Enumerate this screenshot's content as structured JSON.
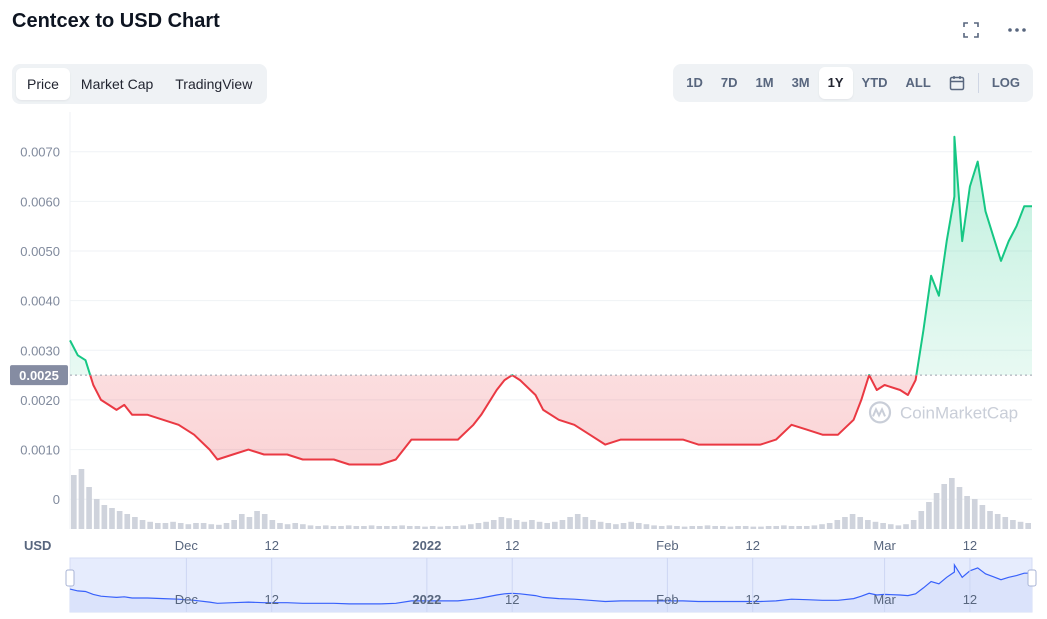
{
  "page": {
    "title": "Centcex to USD Chart"
  },
  "tabs": [
    {
      "label": "Price",
      "active": true
    },
    {
      "label": "Market Cap",
      "active": false
    },
    {
      "label": "TradingView",
      "active": false
    }
  ],
  "ranges": [
    {
      "label": "1D",
      "active": false
    },
    {
      "label": "7D",
      "active": false
    },
    {
      "label": "1M",
      "active": false
    },
    {
      "label": "3M",
      "active": false
    },
    {
      "label": "1Y",
      "active": true
    },
    {
      "label": "YTD",
      "active": false
    },
    {
      "label": "ALL",
      "active": false
    }
  ],
  "log_label": "LOG",
  "icons": {
    "fullscreen": "expand-icon",
    "more": "more-dots-icon",
    "calendar": "calendar-icon"
  },
  "colors": {
    "up": "#16c784",
    "down": "#ea3943",
    "accent": "#3861fb",
    "navigator_fill": "#e6ecfd",
    "baseline_tag": "#858ca2"
  },
  "chart_data": {
    "type": "area",
    "currency_label": "USD",
    "watermark": "CoinMarketCap",
    "baseline": 0.0025,
    "baseline_label": "0.0025",
    "ylim": [
      -0.0006,
      0.0078
    ],
    "yticks": [
      {
        "value": 0.007,
        "label": "0.0070"
      },
      {
        "value": 0.006,
        "label": "0.0060"
      },
      {
        "value": 0.005,
        "label": "0.0050"
      },
      {
        "value": 0.004,
        "label": "0.0040"
      },
      {
        "value": 0.003,
        "label": "0.0030"
      },
      {
        "value": 0.002,
        "label": "0.0020"
      },
      {
        "value": 0.001,
        "label": "0.0010"
      },
      {
        "value": 0,
        "label": "0"
      }
    ],
    "x_domain": [
      "2021-11-16",
      "2022-03-20"
    ],
    "xticks": [
      {
        "date": "2021-12-01",
        "label": "Dec",
        "bold": false
      },
      {
        "date": "2021-12-12",
        "label": "12",
        "bold": false
      },
      {
        "date": "2022-01-01",
        "label": "2022",
        "bold": true
      },
      {
        "date": "2022-01-12",
        "label": "12",
        "bold": false
      },
      {
        "date": "2022-02-01",
        "label": "Feb",
        "bold": false
      },
      {
        "date": "2022-02-12",
        "label": "12",
        "bold": false
      },
      {
        "date": "2022-03-01",
        "label": "Mar",
        "bold": false
      },
      {
        "date": "2022-03-12",
        "label": "12",
        "bold": false
      }
    ],
    "series": [
      {
        "values": [
          [
            "2021-11-16",
            0.0032
          ],
          [
            "2021-11-17",
            0.0029
          ],
          [
            "2021-11-18",
            0.0028
          ],
          [
            "2021-11-19",
            0.0023
          ],
          [
            "2021-11-20",
            0.002
          ],
          [
            "2021-11-21",
            0.0019
          ],
          [
            "2021-11-22",
            0.0018
          ],
          [
            "2021-11-23",
            0.0019
          ],
          [
            "2021-11-24",
            0.0017
          ],
          [
            "2021-11-26",
            0.0017
          ],
          [
            "2021-11-28",
            0.0016
          ],
          [
            "2021-11-30",
            0.0015
          ],
          [
            "2021-12-02",
            0.0013
          ],
          [
            "2021-12-04",
            0.001
          ],
          [
            "2021-12-05",
            0.0008
          ],
          [
            "2021-12-07",
            0.0009
          ],
          [
            "2021-12-09",
            0.001
          ],
          [
            "2021-12-11",
            0.0009
          ],
          [
            "2021-12-14",
            0.0009
          ],
          [
            "2021-12-16",
            0.0008
          ],
          [
            "2021-12-18",
            0.0008
          ],
          [
            "2021-12-20",
            0.0008
          ],
          [
            "2021-12-22",
            0.0007
          ],
          [
            "2021-12-24",
            0.0007
          ],
          [
            "2021-12-26",
            0.0007
          ],
          [
            "2021-12-28",
            0.0008
          ],
          [
            "2021-12-30",
            0.0012
          ],
          [
            "2022-01-01",
            0.0012
          ],
          [
            "2022-01-03",
            0.0012
          ],
          [
            "2022-01-05",
            0.0012
          ],
          [
            "2022-01-07",
            0.0015
          ],
          [
            "2022-01-08",
            0.0017
          ],
          [
            "2022-01-10",
            0.0022
          ],
          [
            "2022-01-11",
            0.0024
          ],
          [
            "2022-01-12",
            0.0025
          ],
          [
            "2022-01-13",
            0.0024
          ],
          [
            "2022-01-15",
            0.0021
          ],
          [
            "2022-01-16",
            0.0018
          ],
          [
            "2022-01-18",
            0.0016
          ],
          [
            "2022-01-20",
            0.0015
          ],
          [
            "2022-01-22",
            0.0013
          ],
          [
            "2022-01-24",
            0.0011
          ],
          [
            "2022-01-26",
            0.0012
          ],
          [
            "2022-01-28",
            0.0012
          ],
          [
            "2022-01-30",
            0.0012
          ],
          [
            "2022-02-01",
            0.0012
          ],
          [
            "2022-02-03",
            0.0012
          ],
          [
            "2022-02-05",
            0.0011
          ],
          [
            "2022-02-07",
            0.0011
          ],
          [
            "2022-02-09",
            0.0011
          ],
          [
            "2022-02-11",
            0.0011
          ],
          [
            "2022-02-13",
            0.0011
          ],
          [
            "2022-02-15",
            0.0012
          ],
          [
            "2022-02-17",
            0.0015
          ],
          [
            "2022-02-19",
            0.0014
          ],
          [
            "2022-02-21",
            0.0013
          ],
          [
            "2022-02-23",
            0.0013
          ],
          [
            "2022-02-25",
            0.0016
          ],
          [
            "2022-02-26",
            0.002
          ],
          [
            "2022-02-27",
            0.0025
          ],
          [
            "2022-02-28",
            0.0022
          ],
          [
            "2022-03-01",
            0.0023
          ],
          [
            "2022-03-03",
            0.0022
          ],
          [
            "2022-03-04",
            0.0021
          ],
          [
            "2022-03-05",
            0.0024
          ],
          [
            "2022-03-06",
            0.0034
          ],
          [
            "2022-03-07",
            0.0045
          ],
          [
            "2022-03-08",
            0.0041
          ],
          [
            "2022-03-09",
            0.0052
          ],
          [
            "2022-03-10",
            0.0061
          ],
          [
            "2022-03-10",
            0.0073
          ],
          [
            "2022-03-11",
            0.0052
          ],
          [
            "2022-03-12",
            0.0063
          ],
          [
            "2022-03-13",
            0.0068
          ],
          [
            "2022-03-14",
            0.0058
          ],
          [
            "2022-03-15",
            0.0053
          ],
          [
            "2022-03-16",
            0.0048
          ],
          [
            "2022-03-17",
            0.0052
          ],
          [
            "2022-03-18",
            0.0055
          ],
          [
            "2022-03-19",
            0.0059
          ],
          [
            "2022-03-20",
            0.0059
          ]
        ]
      }
    ],
    "volume": [
      0.9,
      1.0,
      0.7,
      0.5,
      0.4,
      0.35,
      0.3,
      0.25,
      0.2,
      0.15,
      0.12,
      0.1,
      0.1,
      0.12,
      0.1,
      0.08,
      0.1,
      0.1,
      0.08,
      0.07,
      0.1,
      0.15,
      0.25,
      0.2,
      0.3,
      0.25,
      0.15,
      0.1,
      0.08,
      0.1,
      0.08,
      0.06,
      0.05,
      0.06,
      0.05,
      0.05,
      0.06,
      0.05,
      0.05,
      0.06,
      0.05,
      0.05,
      0.05,
      0.06,
      0.05,
      0.05,
      0.04,
      0.05,
      0.04,
      0.05,
      0.05,
      0.06,
      0.08,
      0.1,
      0.12,
      0.15,
      0.2,
      0.18,
      0.15,
      0.12,
      0.15,
      0.12,
      0.1,
      0.12,
      0.15,
      0.2,
      0.25,
      0.2,
      0.15,
      0.12,
      0.1,
      0.08,
      0.1,
      0.12,
      0.1,
      0.08,
      0.06,
      0.05,
      0.06,
      0.05,
      0.04,
      0.05,
      0.05,
      0.06,
      0.05,
      0.05,
      0.04,
      0.05,
      0.05,
      0.04,
      0.04,
      0.05,
      0.05,
      0.06,
      0.05,
      0.05,
      0.05,
      0.06,
      0.08,
      0.1,
      0.15,
      0.2,
      0.25,
      0.2,
      0.15,
      0.12,
      0.1,
      0.08,
      0.06,
      0.08,
      0.15,
      0.3,
      0.45,
      0.6,
      0.75,
      0.85,
      0.7,
      0.55,
      0.5,
      0.4,
      0.3,
      0.25,
      0.2,
      0.15,
      0.12,
      0.1
    ]
  }
}
